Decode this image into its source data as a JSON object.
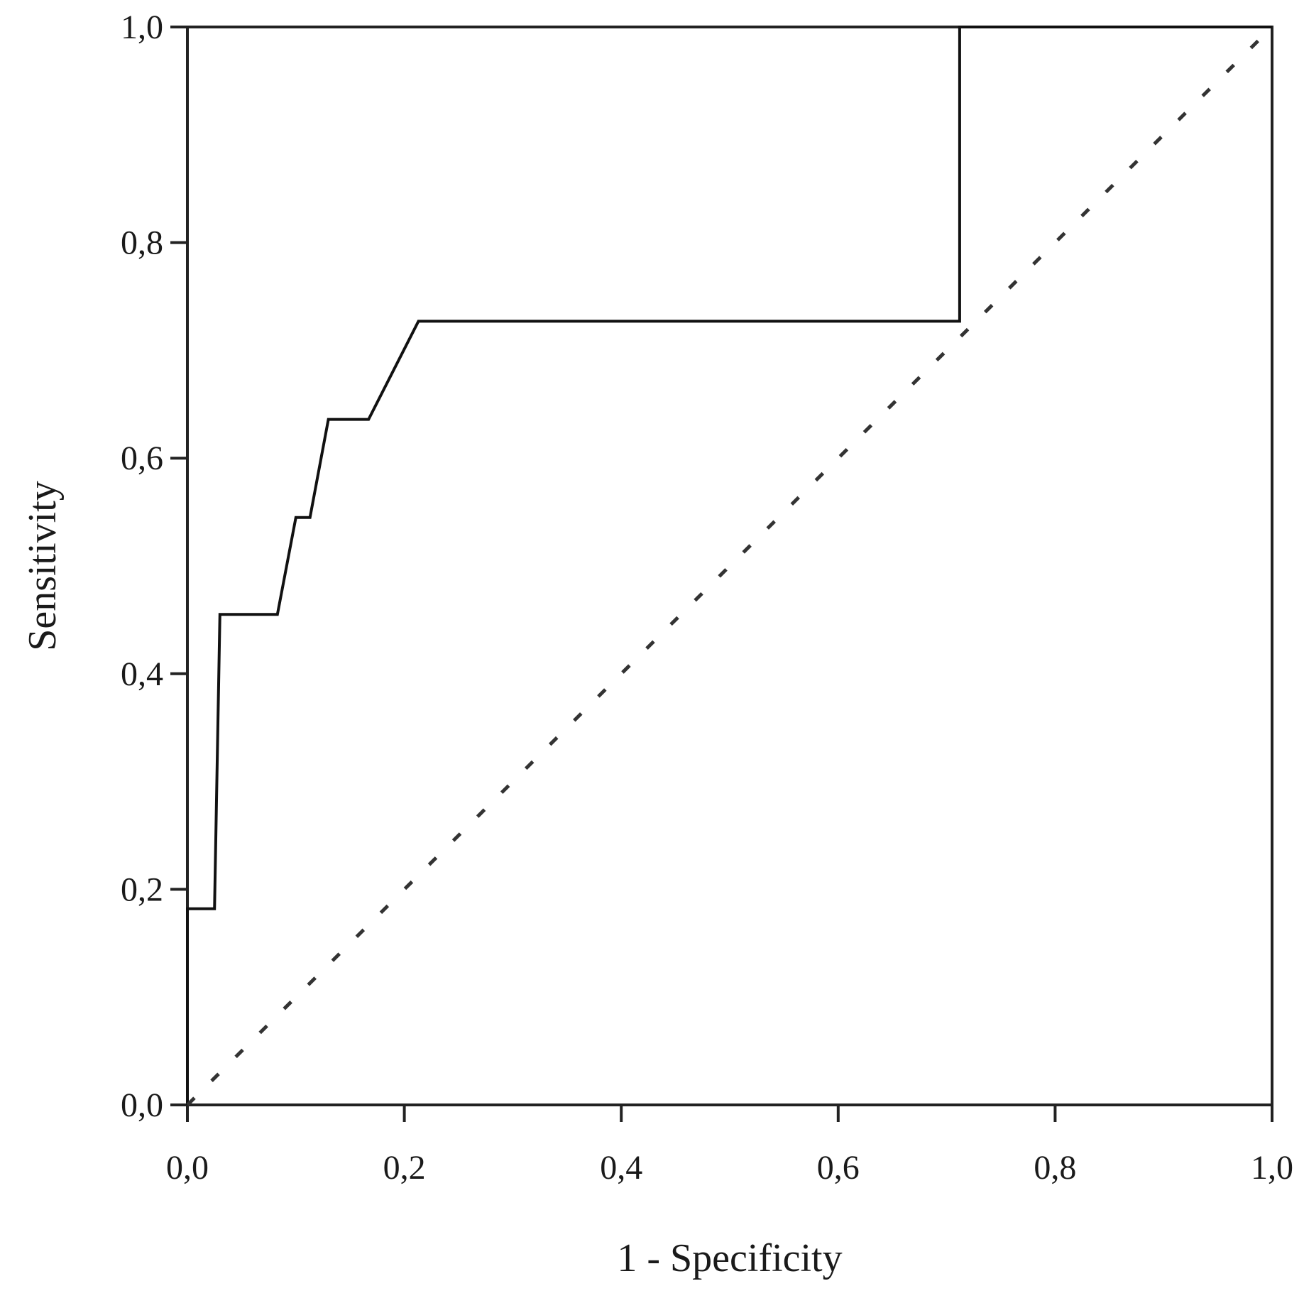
{
  "chart_data": {
    "type": "line",
    "title": "",
    "xlabel": "1 - Specificity",
    "ylabel": "Sensitivity",
    "xlim": [
      0,
      1
    ],
    "ylim": [
      0,
      1
    ],
    "x_ticks": [
      0,
      0.2,
      0.4,
      0.6,
      0.8,
      1.0
    ],
    "y_ticks": [
      0,
      0.2,
      0.4,
      0.6,
      0.8,
      1.0
    ],
    "x_tick_labels": [
      "0,0",
      "0,2",
      "0,4",
      "0,6",
      "0,8",
      "1,0"
    ],
    "y_tick_labels": [
      "0,0",
      "0,2",
      "0,4",
      "0,6",
      "0,8",
      "1,0"
    ],
    "grid": false,
    "legend": "none",
    "series": [
      {
        "style": "solid",
        "color": "#111111",
        "x": [
          0.0,
          0.0,
          0.025,
          0.03,
          0.083,
          0.1,
          0.113,
          0.13,
          0.167,
          0.213,
          0.712,
          0.712,
          1.0
        ],
        "y": [
          0.0,
          0.182,
          0.182,
          0.455,
          0.455,
          0.545,
          0.545,
          0.636,
          0.636,
          0.727,
          0.727,
          1.0,
          1.0
        ]
      },
      {
        "style": "dashed",
        "color": "#333333",
        "x": [
          0.0,
          1.0
        ],
        "y": [
          0.0,
          1.0
        ]
      }
    ]
  }
}
